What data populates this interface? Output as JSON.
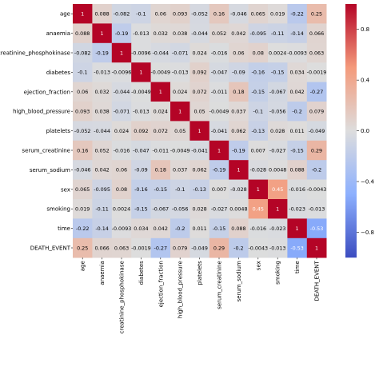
{
  "chart_data": {
    "type": "heatmap",
    "variables": [
      "age",
      "anaemia",
      "creatinine_phosphokinase",
      "diabetes",
      "ejection_fraction",
      "high_blood_pressure",
      "platelets",
      "serum_creatinine",
      "serum_sodium",
      "sex",
      "smoking",
      "time",
      "DEATH_EVENT"
    ],
    "cell_labels": [
      [
        "1",
        "0.088",
        "-0.082",
        "-0.1",
        "0.06",
        "0.093",
        "-0.052",
        "0.16",
        "-0.046",
        "0.065",
        "0.019",
        "-0.22",
        "0.25"
      ],
      [
        "0.088",
        "1",
        "-0.19",
        "-0.013",
        "0.032",
        "0.038",
        "-0.044",
        "0.052",
        "0.042",
        "-0.095",
        "-0.11",
        "-0.14",
        "0.066"
      ],
      [
        "-0.082",
        "-0.19",
        "1",
        "-0.0096",
        "-0.044",
        "-0.071",
        "0.024",
        "-0.016",
        "0.06",
        "0.08",
        "0.0024",
        "-0.0093",
        "0.063"
      ],
      [
        "-0.1",
        "-0.013",
        "-0.0096",
        "1",
        "-0.0049",
        "-0.013",
        "0.092",
        "-0.047",
        "-0.09",
        "-0.16",
        "-0.15",
        "0.034",
        "-0.0019"
      ],
      [
        "0.06",
        "0.032",
        "-0.044",
        "-0.0049",
        "1",
        "0.024",
        "0.072",
        "-0.011",
        "0.18",
        "-0.15",
        "-0.067",
        "0.042",
        "-0.27"
      ],
      [
        "0.093",
        "0.038",
        "-0.071",
        "-0.013",
        "0.024",
        "1",
        "0.05",
        "-0.0049",
        "0.037",
        "-0.1",
        "-0.056",
        "-0.2",
        "0.079"
      ],
      [
        "-0.052",
        "-0.044",
        "0.024",
        "0.092",
        "0.072",
        "0.05",
        "1",
        "-0.041",
        "0.062",
        "-0.13",
        "0.028",
        "0.011",
        "-0.049"
      ],
      [
        "0.16",
        "0.052",
        "-0.016",
        "-0.047",
        "-0.011",
        "-0.0049",
        "-0.041",
        "1",
        "-0.19",
        "0.007",
        "-0.027",
        "-0.15",
        "0.29"
      ],
      [
        "-0.046",
        "0.042",
        "0.06",
        "-0.09",
        "0.18",
        "0.037",
        "0.062",
        "-0.19",
        "1",
        "-0.028",
        "0.0048",
        "0.088",
        "-0.2"
      ],
      [
        "0.065",
        "-0.095",
        "0.08",
        "-0.16",
        "-0.15",
        "-0.1",
        "-0.13",
        "0.007",
        "-0.028",
        "1",
        "0.45",
        "-0.016",
        "-0.0043"
      ],
      [
        "0.019",
        "-0.11",
        "0.0024",
        "-0.15",
        "-0.067",
        "-0.056",
        "0.028",
        "-0.027",
        "0.0048",
        "0.45",
        "1",
        "-0.023",
        "-0.013"
      ],
      [
        "-0.22",
        "-0.14",
        "-0.0093",
        "0.034",
        "0.042",
        "-0.2",
        "0.011",
        "-0.15",
        "0.088",
        "-0.016",
        "-0.023",
        "1",
        "-0.53"
      ],
      [
        "0.25",
        "0.066",
        "0.063",
        "-0.0019",
        "-0.27",
        "0.079",
        "-0.049",
        "0.29",
        "-0.2",
        "-0.0043",
        "-0.013",
        "-0.53",
        "1"
      ]
    ],
    "colormap": "coolwarm",
    "value_range": [
      -1,
      1
    ],
    "colorbar": {
      "ticks": [
        0.8,
        0.4,
        0.0,
        -0.4,
        -0.8
      ],
      "tick_labels": [
        "0.8",
        "0.4",
        "0.0",
        "−0.4",
        "−0.8"
      ],
      "placement": "right"
    },
    "xlabel": "",
    "ylabel": "",
    "title": ""
  }
}
